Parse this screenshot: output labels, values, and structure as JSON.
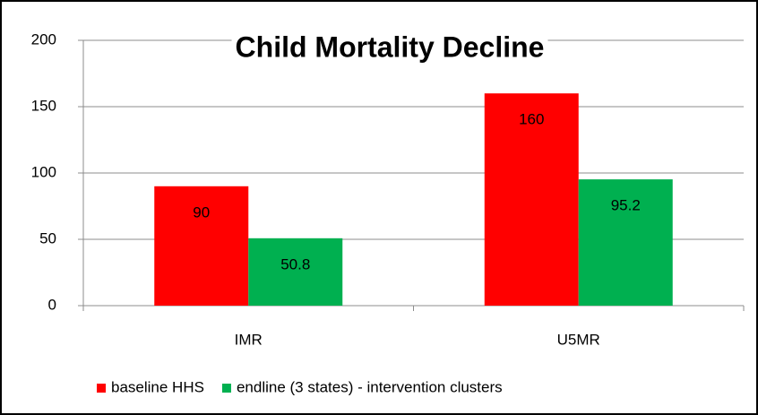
{
  "chart_data": {
    "type": "bar",
    "title": "Child Mortality Decline",
    "categories": [
      "IMR",
      "U5MR"
    ],
    "series": [
      {
        "name": "baseline HHS",
        "color": "#ff0000",
        "values": [
          90,
          160
        ]
      },
      {
        "name": "endline (3 states) - intervention clusters",
        "color": "#00b050",
        "values": [
          50.8,
          95.2
        ]
      }
    ],
    "ylim": [
      0,
      200
    ],
    "yticks": [
      0,
      50,
      100,
      150,
      200
    ],
    "grid": true,
    "legend": "bottom"
  }
}
